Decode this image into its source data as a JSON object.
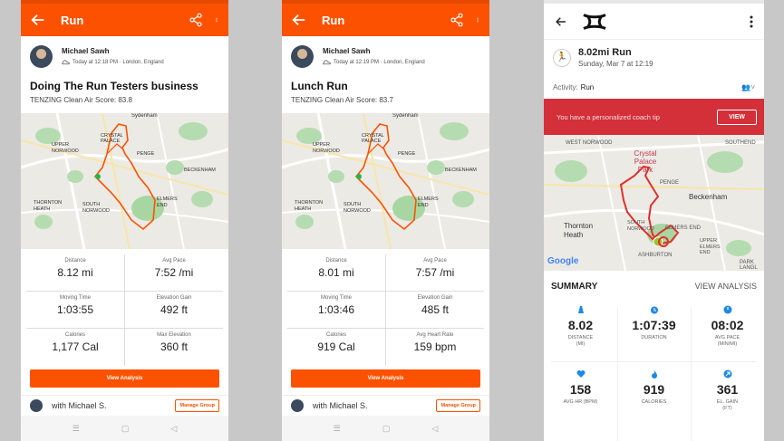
{
  "panel1": {
    "header_title": "Run",
    "athlete_name": "Michael Sawh",
    "activity_meta": "Today at 12:18 PM · London, England",
    "activity_title": "Doing The Run Testers business",
    "air_score": "TENZING Clean Air Score: 83.8",
    "map_labels": [
      "Sydenham",
      "CRYSTAL PALACE",
      "UPPER NORWOOD",
      "PENGE",
      "BECKENHAM",
      "THORNTON HEATH",
      "SOUTH NORWOOD",
      "ELMERS END"
    ],
    "stats": [
      {
        "label": "Distance",
        "value": "8.12 mi"
      },
      {
        "label": "Avg Pace",
        "value": "7:52 /mi"
      },
      {
        "label": "Moving Time",
        "value": "1:03:55"
      },
      {
        "label": "Elevation Gain",
        "value": "492 ft"
      },
      {
        "label": "Calories",
        "value": "1,177 Cal"
      },
      {
        "label": "Max Elevation",
        "value": "360 ft"
      }
    ],
    "view_analysis": "View Analysis",
    "with_text": "with Michael S.",
    "manage_group": "Manage Group"
  },
  "panel2": {
    "header_title": "Run",
    "athlete_name": "Michael Sawh",
    "activity_meta": "Today at 12:19 PM · London, England",
    "activity_title": "Lunch Run",
    "air_score": "TENZING Clean Air Score: 83.7",
    "map_labels": [
      "Sydenham",
      "CRYSTAL PALACE",
      "UPPER NORWOOD",
      "PENGE",
      "BECKENHAM",
      "THORNTON HEATH",
      "SOUTH NORWOOD",
      "ELMERS END"
    ],
    "stats": [
      {
        "label": "Distance",
        "value": "8.01 mi"
      },
      {
        "label": "Avg Pace",
        "value": "7:57 /mi"
      },
      {
        "label": "Moving Time",
        "value": "1:03:46"
      },
      {
        "label": "Elevation Gain",
        "value": "485 ft"
      },
      {
        "label": "Calories",
        "value": "919 Cal"
      },
      {
        "label": "Avg Heart Rate",
        "value": "159 bpm"
      }
    ],
    "view_analysis": "View Analysis",
    "with_text": "with Michael S.",
    "manage_group": "Manage Group"
  },
  "panel3": {
    "run_title": "8.02mi Run",
    "run_date": "Sunday, Mar 7 at 12:19",
    "activity_label": "Activity:",
    "activity_value": "Run",
    "coach_text": "You have a personalized coach tip",
    "view_button": "VIEW",
    "map_labels": [
      "WEST NORWOOD",
      "SOUTHEND",
      "Crystal Palace Park",
      "PENGE",
      "Beckenham",
      "Thornton Heath",
      "SOUTH NORWOOD",
      "ELMERS END",
      "UPPER ELMERS END",
      "ASHBURTON",
      "PARK LANGL",
      "Google"
    ],
    "summary_title": "SUMMARY",
    "view_analysis": "VIEW ANALYSIS",
    "metrics": [
      {
        "icon": "distance-icon",
        "value": "8.02",
        "label": "DISTANCE\n(MI)"
      },
      {
        "icon": "timer-icon",
        "value": "1:07:39",
        "label": "DURATION"
      },
      {
        "icon": "pace-icon",
        "value": "08:02",
        "label": "AVG PACE\n(MIN/MI)"
      },
      {
        "icon": "heart-icon",
        "value": "158",
        "label": "AVG HR (BPM)"
      },
      {
        "icon": "flame-icon",
        "value": "919",
        "label": "CALORIES"
      },
      {
        "icon": "elevation-icon",
        "value": "361",
        "label": "EL. GAIN\n(FT)"
      }
    ]
  },
  "colors": {
    "strava_orange": "#fc5200",
    "ua_red": "#d3303a",
    "ua_blue": "#1e88e5",
    "route_red": "#e0302c"
  }
}
